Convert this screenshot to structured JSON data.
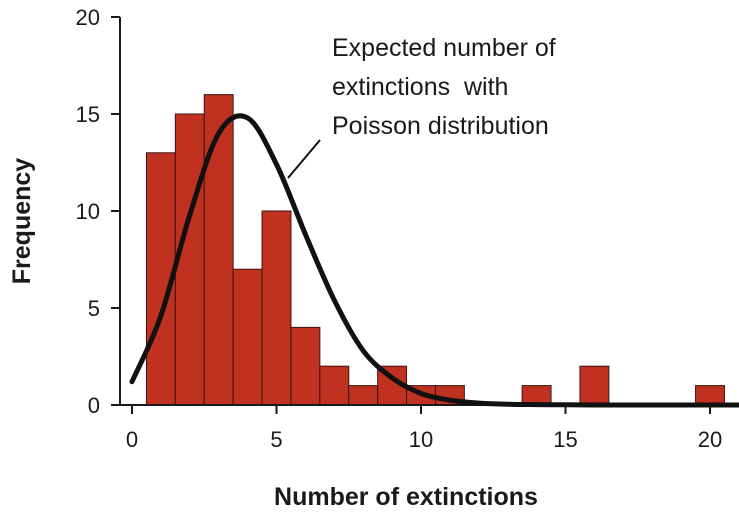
{
  "chart_data": {
    "type": "bar",
    "title": "",
    "xlabel": "Number of extinctions",
    "ylabel": "Frequency",
    "xlim": [
      -0.5,
      21.5
    ],
    "ylim": [
      0,
      20
    ],
    "x_ticks": [
      0,
      5,
      10,
      15,
      20
    ],
    "y_ticks": [
      0,
      5,
      10,
      15,
      20
    ],
    "colors": {
      "bar_fill": "#c0311f",
      "bar_stroke": "#3a1410",
      "curve": "#111111",
      "axis": "#1a1a1a"
    },
    "bins": [
      {
        "x": 1,
        "count": 13
      },
      {
        "x": 2,
        "count": 15
      },
      {
        "x": 3,
        "count": 16
      },
      {
        "x": 4,
        "count": 7
      },
      {
        "x": 5,
        "count": 10
      },
      {
        "x": 6,
        "count": 4
      },
      {
        "x": 7,
        "count": 2
      },
      {
        "x": 8,
        "count": 1
      },
      {
        "x": 9,
        "count": 2
      },
      {
        "x": 10,
        "count": 1
      },
      {
        "x": 11,
        "count": 1
      },
      {
        "x": 14,
        "count": 1
      },
      {
        "x": 16,
        "count": 2
      },
      {
        "x": 20,
        "count": 1
      }
    ],
    "series": [
      {
        "name": "Expected number of extinctions with Poisson distribution",
        "x": [
          0,
          1,
          2,
          3,
          4,
          5,
          6,
          7,
          8,
          9,
          10,
          11,
          12,
          13,
          14,
          15,
          16,
          17,
          18,
          19,
          20,
          21
        ],
        "values": [
          1.2,
          4.6,
          9.8,
          14.0,
          14.8,
          12.4,
          8.8,
          5.4,
          2.8,
          1.4,
          0.6,
          0.25,
          0.1,
          0.04,
          0.02,
          0.01,
          0,
          0,
          0,
          0,
          0,
          0
        ]
      }
    ],
    "annotation": {
      "lines": [
        "Expected number of",
        "extinctions  with",
        "Poisson distribution"
      ]
    }
  }
}
